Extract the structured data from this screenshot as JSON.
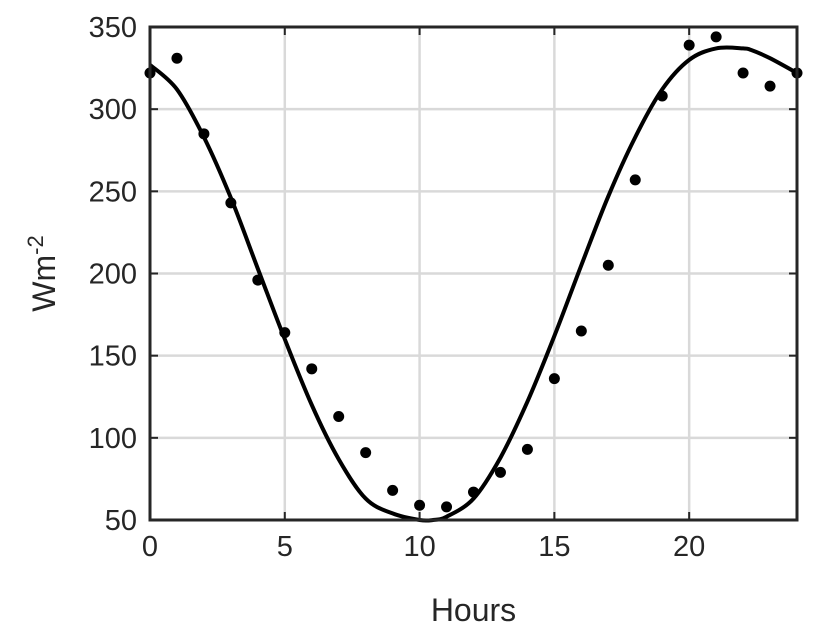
{
  "chart_data": {
    "type": "scatter",
    "title": "",
    "xlabel": "Hours",
    "ylabel_base": "Wm",
    "ylabel_sup": "-2",
    "xlim": [
      0,
      24
    ],
    "ylim": [
      50,
      350
    ],
    "xticks": [
      0,
      5,
      10,
      15,
      20
    ],
    "xtick_labels": [
      "0",
      "5",
      "10",
      "15",
      "20"
    ],
    "yticks": [
      50,
      100,
      150,
      200,
      250,
      300,
      350
    ],
    "ytick_labels": [
      "50",
      "100",
      "150",
      "200",
      "250",
      "300",
      "350"
    ],
    "grid": true,
    "series": [
      {
        "kind": "points",
        "x": [
          0,
          1,
          2,
          3,
          4,
          5,
          6,
          7,
          8,
          9,
          10,
          11,
          12,
          13,
          14,
          15,
          16,
          17,
          18,
          19,
          20,
          21,
          22,
          23,
          24
        ],
        "y": [
          322,
          331,
          285,
          243,
          196,
          164,
          142,
          113,
          91,
          68,
          59,
          58,
          67,
          79,
          93,
          136,
          165,
          205,
          257,
          308,
          339,
          344,
          322,
          314,
          322
        ]
      },
      {
        "kind": "fit-line",
        "x": [
          0,
          1,
          2,
          3,
          4,
          5,
          6,
          7,
          8,
          9,
          10,
          10.5,
          11,
          12,
          13,
          14,
          15,
          16,
          17,
          18,
          19,
          20,
          21,
          22,
          22.3,
          23,
          24
        ],
        "y": [
          327,
          312,
          283,
          246,
          203,
          160,
          120,
          87,
          63,
          54,
          50,
          50,
          52,
          63,
          88,
          122,
          162,
          205,
          247,
          283,
          312,
          330,
          337,
          337,
          336,
          331,
          322
        ]
      }
    ],
    "colors": {
      "markers": "#000000",
      "line": "#000000",
      "grid": "#d9d9d9",
      "axes": "#262626"
    }
  }
}
